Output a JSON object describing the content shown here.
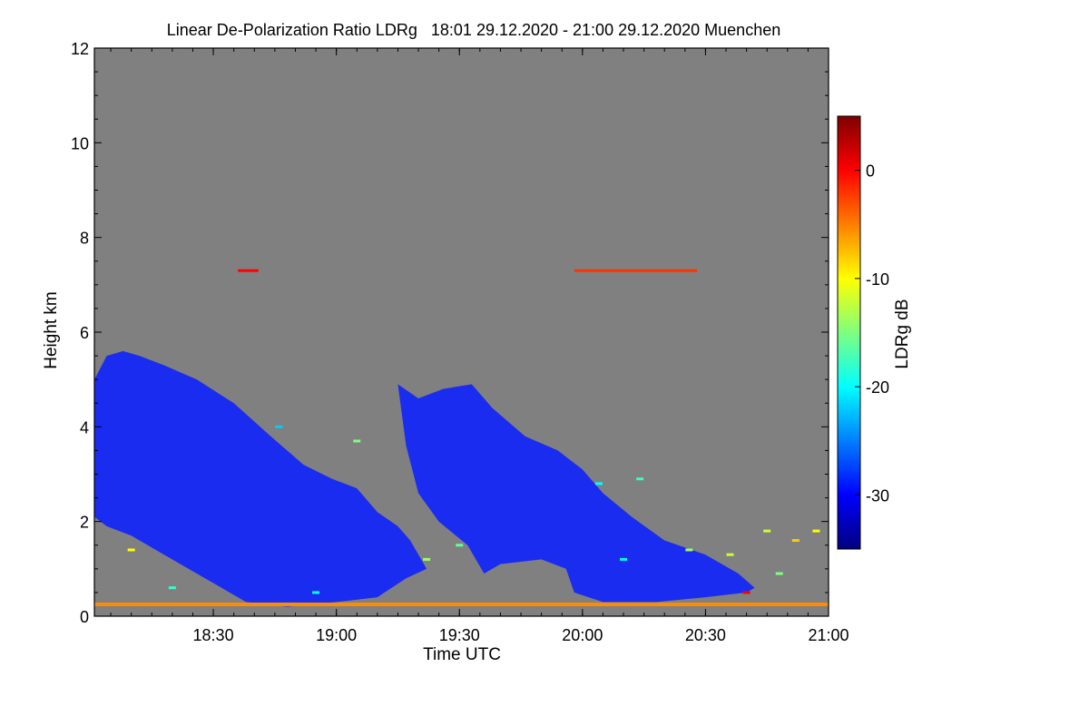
{
  "chart_data": {
    "type": "heatmap",
    "title": "Linear De-Polarization Ratio LDRg   18:01 29.12.2020 - 21:00 29.12.2020 Muenchen",
    "xlabel": "Time UTC",
    "ylabel": "Height km",
    "xlim_minutes_utc": [
      1081,
      1260
    ],
    "ylim_km": [
      0,
      12
    ],
    "x_ticks": [
      {
        "label": "18:30",
        "minutes": 1110
      },
      {
        "label": "19:00",
        "minutes": 1140
      },
      {
        "label": "19:30",
        "minutes": 1170
      },
      {
        "label": "20:00",
        "minutes": 1200
      },
      {
        "label": "20:30",
        "minutes": 1230
      },
      {
        "label": "21:00",
        "minutes": 1260
      }
    ],
    "y_ticks": [
      {
        "label": "0",
        "value": 0
      },
      {
        "label": "2",
        "value": 2
      },
      {
        "label": "4",
        "value": 4
      },
      {
        "label": "6",
        "value": 6
      },
      {
        "label": "8",
        "value": 8
      },
      {
        "label": "10",
        "value": 10
      },
      {
        "label": "12",
        "value": 12
      }
    ],
    "colorbar": {
      "label": "LDRg dB",
      "range": [
        -35,
        5
      ],
      "ticks": [
        {
          "label": "0",
          "value": 0
        },
        {
          "label": "-10",
          "value": -10
        },
        {
          "label": "-20",
          "value": -20
        },
        {
          "label": "-30",
          "value": -30
        }
      ],
      "colormap": [
        "#00007f",
        "#0000ff",
        "#007fff",
        "#00ffff",
        "#7fff7f",
        "#ffff00",
        "#ff7f00",
        "#ff0000",
        "#7f0000"
      ]
    },
    "background_color": "#808080",
    "echo_regions": [
      {
        "name": "cloud-system-1",
        "ldr_db": -31,
        "color": "#1a2cf0",
        "outline_min_km": [
          [
            1081,
            5.0
          ],
          [
            1084,
            5.5
          ],
          [
            1088,
            5.6
          ],
          [
            1092,
            5.5
          ],
          [
            1098,
            5.3
          ],
          [
            1106,
            5.0
          ],
          [
            1115,
            4.5
          ],
          [
            1124,
            3.8
          ],
          [
            1132,
            3.2
          ],
          [
            1139,
            2.9
          ],
          [
            1145,
            2.7
          ],
          [
            1150,
            2.2
          ],
          [
            1155,
            1.9
          ],
          [
            1158,
            1.6
          ],
          [
            1162,
            1.0
          ],
          [
            1157,
            0.8
          ],
          [
            1150,
            0.4
          ],
          [
            1140,
            0.3
          ],
          [
            1128,
            0.2
          ],
          [
            1118,
            0.3
          ],
          [
            1108,
            0.8
          ],
          [
            1098,
            1.3
          ],
          [
            1090,
            1.7
          ],
          [
            1084,
            1.9
          ],
          [
            1081,
            2.1
          ]
        ]
      },
      {
        "name": "cloud-system-2",
        "ldr_db": -31,
        "color": "#1a2cf0",
        "outline_min_km": [
          [
            1155,
            4.9
          ],
          [
            1160,
            4.6
          ],
          [
            1166,
            4.8
          ],
          [
            1173,
            4.9
          ],
          [
            1178,
            4.4
          ],
          [
            1186,
            3.8
          ],
          [
            1194,
            3.5
          ],
          [
            1200,
            3.1
          ],
          [
            1205,
            2.6
          ],
          [
            1212,
            2.1
          ],
          [
            1220,
            1.6
          ],
          [
            1230,
            1.3
          ],
          [
            1238,
            0.9
          ],
          [
            1242,
            0.6
          ],
          [
            1240,
            0.5
          ],
          [
            1230,
            0.4
          ],
          [
            1218,
            0.3
          ],
          [
            1205,
            0.3
          ],
          [
            1198,
            0.5
          ],
          [
            1196,
            1.0
          ],
          [
            1190,
            1.2
          ],
          [
            1180,
            1.1
          ],
          [
            1176,
            0.9
          ],
          [
            1172,
            1.5
          ],
          [
            1165,
            2.0
          ],
          [
            1160,
            2.6
          ],
          [
            1157,
            3.6
          ]
        ]
      }
    ],
    "ground_clutter_band": {
      "height_km": 0.25,
      "ldr_db": -5,
      "color": "#ff8c00",
      "start_minutes": 1081,
      "end_minutes": 1260
    },
    "high_level_returns": [
      {
        "start_minutes": 1116,
        "end_minutes": 1121,
        "height_km": 7.3,
        "ldr_db": 0
      },
      {
        "start_minutes": 1198,
        "end_minutes": 1228,
        "height_km": 7.3,
        "ldr_db": -2
      }
    ],
    "near_surface_speckles": [
      {
        "minutes": 1245,
        "height_km": 1.8,
        "ldr_db": -12
      },
      {
        "minutes": 1252,
        "height_km": 1.6,
        "ldr_db": -8
      },
      {
        "minutes": 1257,
        "height_km": 1.8,
        "ldr_db": -10
      },
      {
        "minutes": 1248,
        "height_km": 0.9,
        "ldr_db": -15
      },
      {
        "minutes": 1240,
        "height_km": 0.5,
        "ldr_db": 0
      },
      {
        "minutes": 1214,
        "height_km": 2.9,
        "ldr_db": -18
      },
      {
        "minutes": 1204,
        "height_km": 2.8,
        "ldr_db": -20
      },
      {
        "minutes": 1126,
        "height_km": 4.0,
        "ldr_db": -22
      },
      {
        "minutes": 1145,
        "height_km": 3.7,
        "ldr_db": -15
      },
      {
        "minutes": 1162,
        "height_km": 1.2,
        "ldr_db": -14
      },
      {
        "minutes": 1170,
        "height_km": 1.5,
        "ldr_db": -16
      },
      {
        "minutes": 1210,
        "height_km": 1.2,
        "ldr_db": -20
      },
      {
        "minutes": 1090,
        "height_km": 1.4,
        "ldr_db": -10
      },
      {
        "minutes": 1100,
        "height_km": 0.6,
        "ldr_db": -18
      },
      {
        "minutes": 1135,
        "height_km": 0.5,
        "ldr_db": -20
      },
      {
        "minutes": 1226,
        "height_km": 1.4,
        "ldr_db": -14
      },
      {
        "minutes": 1236,
        "height_km": 1.3,
        "ldr_db": -12
      }
    ]
  }
}
